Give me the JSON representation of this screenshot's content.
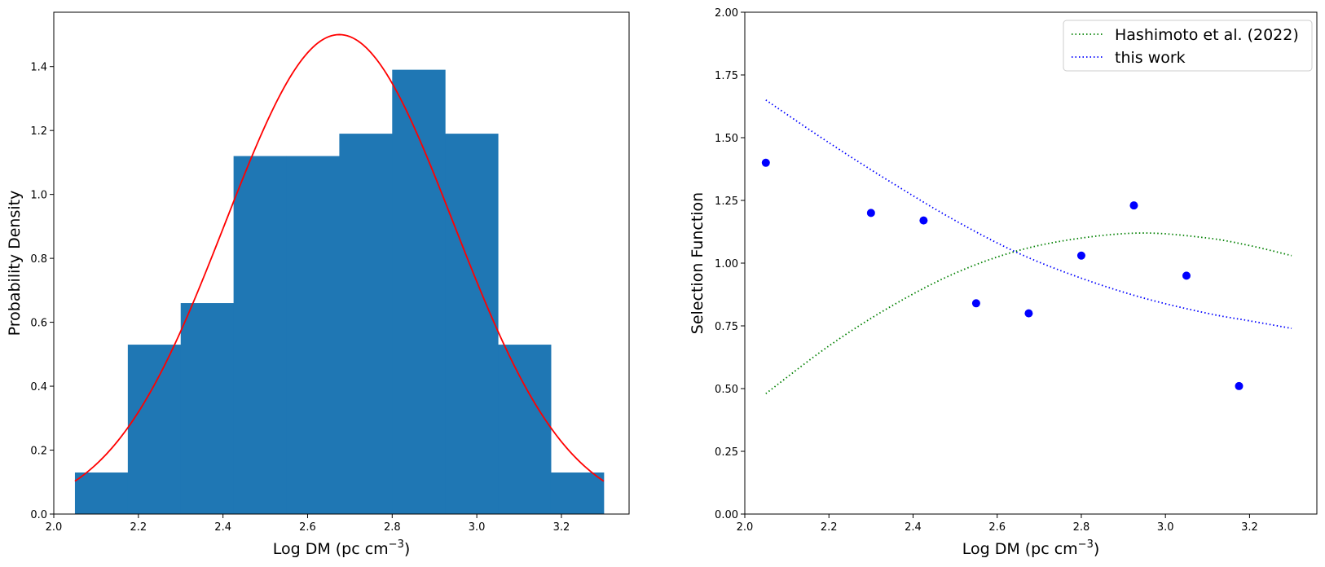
{
  "chart_data": [
    {
      "type": "bar",
      "subtype": "histogram",
      "title": "",
      "xlabel": "Log DM (pc cm",
      "xlabel_sup": "−3",
      "xlabel_close": ")",
      "ylabel": "Probability Density",
      "xlim": [
        2.0,
        3.36
      ],
      "ylim": [
        0.0,
        1.57
      ],
      "xticks": [
        2.0,
        2.2,
        2.4,
        2.6,
        2.8,
        3.0,
        3.2
      ],
      "xtick_labels": [
        "2.0",
        "2.2",
        "2.4",
        "2.6",
        "2.8",
        "3.0",
        "3.2"
      ],
      "yticks": [
        0.0,
        0.2,
        0.4,
        0.6,
        0.8,
        1.0,
        1.2,
        1.4
      ],
      "ytick_labels": [
        "0.0",
        "0.2",
        "0.4",
        "0.6",
        "0.8",
        "1.0",
        "1.2",
        "1.4"
      ],
      "bin_edges": [
        2.05,
        2.175,
        2.3,
        2.425,
        2.55,
        2.675,
        2.8,
        2.925,
        3.05,
        3.175,
        3.3
      ],
      "values": [
        0.13,
        0.53,
        0.66,
        1.12,
        1.12,
        1.19,
        1.39,
        1.19,
        0.53,
        0.13
      ],
      "bar_color": "#1f77b4",
      "fit_curve": {
        "name": "gaussian fit",
        "color": "#ff0000",
        "mean": 2.675,
        "sigma": 0.27,
        "peak": 1.5,
        "x_range": [
          2.05,
          3.3
        ]
      },
      "grid": false
    },
    {
      "type": "scatter",
      "title": "",
      "xlabel": "Log DM (pc cm",
      "xlabel_sup": "−3",
      "xlabel_close": ")",
      "ylabel": "Selection Function",
      "xlim": [
        2.0,
        3.36
      ],
      "ylim": [
        0.0,
        2.0
      ],
      "xticks": [
        2.0,
        2.2,
        2.4,
        2.6,
        2.8,
        3.0,
        3.2
      ],
      "xtick_labels": [
        "2.0",
        "2.2",
        "2.4",
        "2.6",
        "2.8",
        "3.0",
        "3.2"
      ],
      "yticks": [
        0.0,
        0.25,
        0.5,
        0.75,
        1.0,
        1.25,
        1.5,
        1.75,
        2.0
      ],
      "ytick_labels": [
        "0.00",
        "0.25",
        "0.50",
        "0.75",
        "1.00",
        "1.25",
        "1.50",
        "1.75",
        "2.00"
      ],
      "points": {
        "color": "#0000ff",
        "x": [
          2.05,
          2.3,
          2.425,
          2.55,
          2.675,
          2.8,
          2.925,
          3.05,
          3.175
        ],
        "y": [
          1.4,
          1.2,
          1.17,
          0.84,
          0.8,
          1.03,
          1.23,
          0.95,
          0.51
        ]
      },
      "series": [
        {
          "name": "Hashimoto et al. (2022)",
          "color": "#008000",
          "style": "dotted",
          "x": [
            2.05,
            2.2,
            2.35,
            2.5,
            2.65,
            2.8,
            2.95,
            3.1,
            3.2,
            3.3
          ],
          "y": [
            0.48,
            0.67,
            0.83,
            0.96,
            1.05,
            1.1,
            1.12,
            1.1,
            1.07,
            1.03
          ]
        },
        {
          "name": "this work",
          "color": "#0000ff",
          "style": "dotted",
          "x": [
            2.05,
            2.2,
            2.35,
            2.5,
            2.65,
            2.8,
            2.95,
            3.1,
            3.2,
            3.3
          ],
          "y": [
            1.65,
            1.48,
            1.32,
            1.17,
            1.04,
            0.94,
            0.86,
            0.8,
            0.77,
            0.74
          ]
        }
      ],
      "legend_position": "upper right",
      "grid": false
    }
  ]
}
